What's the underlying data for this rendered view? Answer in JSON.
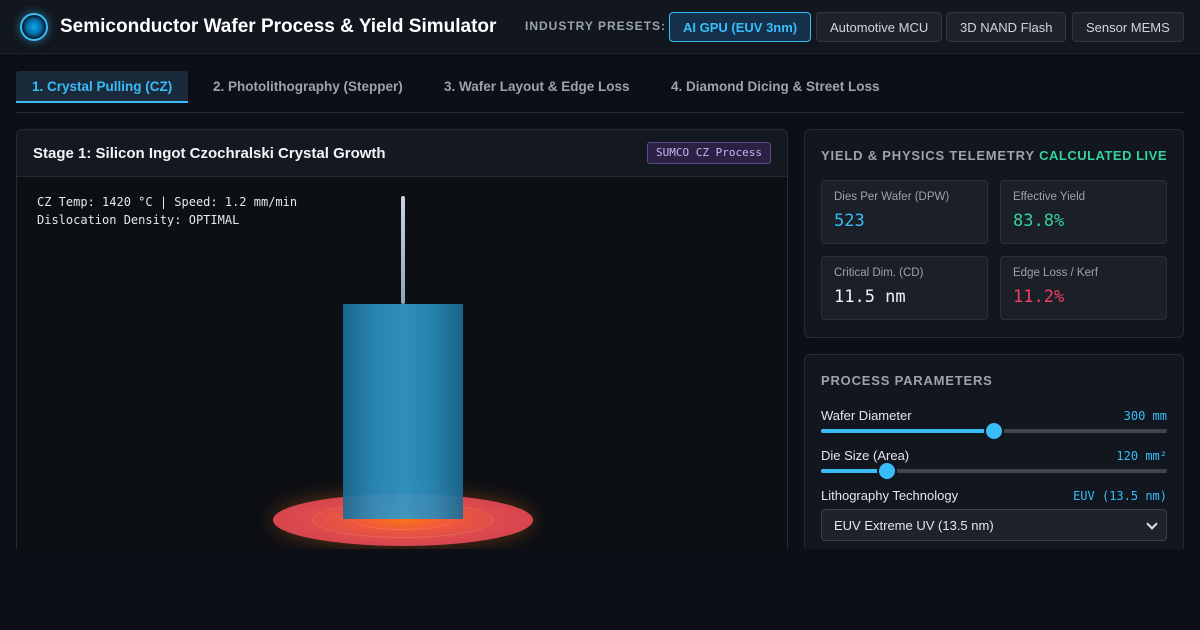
{
  "header": {
    "title": "Semiconductor Wafer Process & Yield Simulator",
    "presets_label": "INDUSTRY PRESETS:",
    "presets": [
      {
        "label": "AI GPU (EUV 3nm)",
        "active": true
      },
      {
        "label": "Automotive MCU",
        "active": false
      },
      {
        "label": "3D NAND Flash",
        "active": false
      },
      {
        "label": "Sensor MEMS",
        "active": false
      }
    ]
  },
  "tabs": [
    {
      "label": "1. Crystal Pulling (CZ)",
      "active": true
    },
    {
      "label": "2. Photolithography (Stepper)",
      "active": false
    },
    {
      "label": "3. Wafer Layout & Edge Loss",
      "active": false
    },
    {
      "label": "4. Diamond Dicing & Street Loss",
      "active": false
    }
  ],
  "stage": {
    "title": "Stage 1: Silicon Ingot Czochralski Crystal Growth",
    "badge": "SUMCO CZ Process",
    "readout_line1": "CZ Temp: 1420 °C | Speed: 1.2 mm/min",
    "readout_line2": "Dislocation Density: OPTIMAL"
  },
  "telemetry": {
    "title": "YIELD & PHYSICS TELEMETRY",
    "status": "CALCULATED LIVE",
    "metrics": [
      {
        "label": "Dies Per Wafer (DPW)",
        "value": "523",
        "color": "#38bdf8"
      },
      {
        "label": "Effective Yield",
        "value": "83.8%",
        "color": "#34d399"
      },
      {
        "label": "Critical Dim. (CD)",
        "value": "11.5 nm",
        "color": "#f3f4f6"
      },
      {
        "label": "Edge Loss / Kerf",
        "value": "11.2%",
        "color": "#f43f5e"
      }
    ]
  },
  "parameters": {
    "title": "PROCESS PARAMETERS",
    "wafer_diameter": {
      "label": "Wafer Diameter",
      "value": "300 mm",
      "fraction": 0.5
    },
    "die_size": {
      "label": "Die Size (Area)",
      "value": "120 mm²",
      "fraction": 0.19
    },
    "litho": {
      "label": "Lithography Technology",
      "value": "EUV (13.5 nm)",
      "selected": "EUV Extreme UV (13.5 nm)"
    }
  },
  "colors": {
    "accent": "#38bdf8",
    "success": "#34d399",
    "danger": "#f43f5e"
  }
}
